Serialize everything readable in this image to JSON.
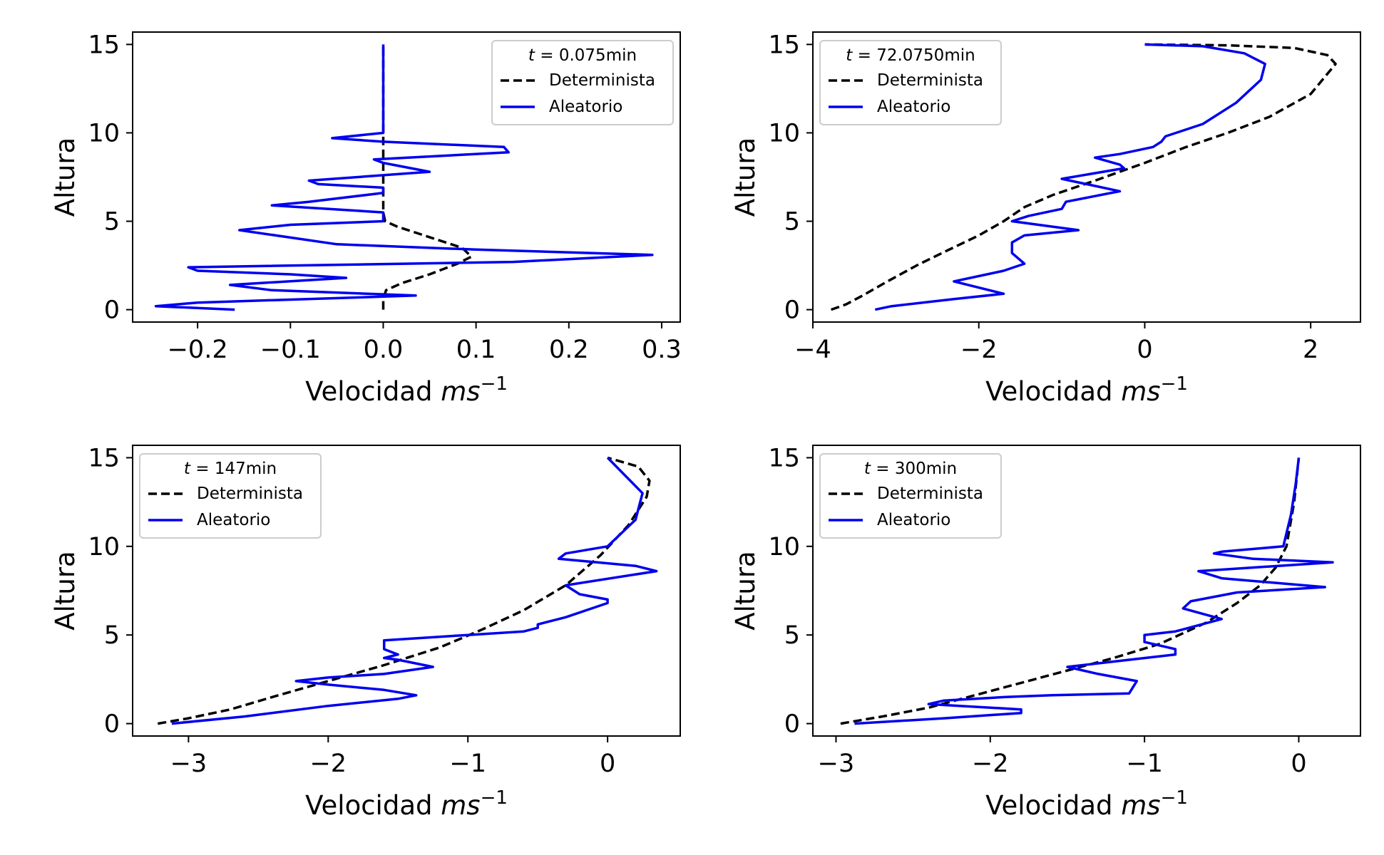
{
  "chart_data": [
    {
      "type": "line",
      "legend_title": {
        "var": "t",
        "rest": " = 0.075min"
      },
      "xlabel": {
        "text": "Velocidad ",
        "math": "ms",
        "sup": "−1"
      },
      "ylabel": "Altura",
      "xlim": [
        -0.27,
        0.32
      ],
      "ylim": [
        -0.7,
        15.7
      ],
      "xticks": [
        -0.2,
        -0.1,
        0.0,
        0.1,
        0.2,
        0.3
      ],
      "xtick_labels": [
        "−0.2",
        "−0.1",
        "0.0",
        "0.1",
        "0.2",
        "0.3"
      ],
      "yticks": [
        0,
        5,
        10,
        15
      ],
      "ytick_labels": [
        "0",
        "5",
        "10",
        "15"
      ],
      "legend_position": "upper right",
      "series": [
        {
          "name": "Determinista",
          "color": "#000000",
          "dash": true,
          "x": [
            0.0,
            0.0,
            0.003,
            0.02,
            0.05,
            0.08,
            0.095,
            0.085,
            0.05,
            0.015,
            0.002,
            0.0,
            0.0,
            0.0,
            0.0
          ],
          "y": [
            0.0,
            0.6,
            1.1,
            1.5,
            2.0,
            2.6,
            3.0,
            3.5,
            4.1,
            4.7,
            5.0,
            5.5,
            7.0,
            10.0,
            15.0
          ]
        },
        {
          "name": "Aleatorio",
          "color": "#0000ee",
          "dash": false,
          "x": [
            -0.16,
            -0.245,
            -0.2,
            0.035,
            -0.12,
            -0.165,
            -0.04,
            -0.1,
            -0.2,
            -0.21,
            0.14,
            0.29,
            0.1,
            -0.05,
            -0.155,
            -0.1,
            0.0,
            0.0,
            -0.12,
            -0.08,
            0.0,
            0.0,
            -0.07,
            -0.08,
            0.05,
            0.0,
            -0.01,
            0.135,
            0.13,
            0.0,
            -0.055,
            0.0,
            0.0,
            0.0
          ],
          "y": [
            0.0,
            0.2,
            0.4,
            0.8,
            1.1,
            1.4,
            1.8,
            2.0,
            2.2,
            2.4,
            2.7,
            3.1,
            3.4,
            3.7,
            4.5,
            4.8,
            5.0,
            5.5,
            5.9,
            6.1,
            6.6,
            6.9,
            7.1,
            7.3,
            7.8,
            8.3,
            8.5,
            8.9,
            9.2,
            9.5,
            9.7,
            10.0,
            13.0,
            15.0
          ]
        }
      ]
    },
    {
      "type": "line",
      "legend_title": {
        "var": "t",
        "rest": " = 72.0750min"
      },
      "xlabel": {
        "text": "Velocidad ",
        "math": "ms",
        "sup": "−1"
      },
      "ylabel": "Altura",
      "xlim": [
        -4.0,
        2.6
      ],
      "ylim": [
        -0.7,
        15.7
      ],
      "xticks": [
        -4,
        -2,
        0,
        2
      ],
      "xtick_labels": [
        "−4",
        "−2",
        "0",
        "2"
      ],
      "yticks": [
        0,
        5,
        10,
        15
      ],
      "ytick_labels": [
        "0",
        "5",
        "10",
        "15"
      ],
      "legend_position": "upper left",
      "series": [
        {
          "name": "Determinista",
          "color": "#000000",
          "dash": true,
          "x": [
            -3.78,
            -3.6,
            -3.4,
            -3.1,
            -2.75,
            -2.4,
            -2.0,
            -1.7,
            -1.45,
            -1.1,
            -0.6,
            0.0,
            0.5,
            1.0,
            1.5,
            2.0,
            2.3,
            2.2,
            1.8,
            1.0,
            0.0
          ],
          "y": [
            0.0,
            0.3,
            0.8,
            1.6,
            2.5,
            3.3,
            4.2,
            5.0,
            5.8,
            6.5,
            7.3,
            8.3,
            9.2,
            10.0,
            10.9,
            12.2,
            13.9,
            14.4,
            14.8,
            14.95,
            15.0
          ]
        },
        {
          "name": "Aleatorio",
          "color": "#0000ee",
          "dash": false,
          "x": [
            -3.25,
            -3.05,
            -2.3,
            -1.7,
            -2.3,
            -1.9,
            -1.7,
            -1.45,
            -1.6,
            -1.6,
            -1.45,
            -0.8,
            -1.6,
            -1.4,
            -1.0,
            -0.95,
            -0.3,
            -0.9,
            -1.0,
            -0.25,
            -0.3,
            -0.6,
            -0.3,
            0.1,
            0.2,
            0.25,
            0.7,
            1.1,
            1.4,
            1.45,
            1.2,
            0.7,
            0.0
          ],
          "y": [
            0.0,
            0.2,
            0.6,
            0.9,
            1.6,
            2.0,
            2.2,
            2.6,
            3.2,
            3.8,
            4.2,
            4.5,
            5.0,
            5.3,
            5.7,
            6.1,
            6.7,
            7.3,
            7.4,
            8.0,
            8.2,
            8.6,
            8.8,
            9.2,
            9.5,
            9.8,
            10.5,
            11.7,
            13.0,
            13.9,
            14.5,
            14.9,
            15.0
          ]
        }
      ]
    },
    {
      "type": "line",
      "legend_title": {
        "var": "t",
        "rest": " = 147min"
      },
      "xlabel": {
        "text": "Velocidad ",
        "math": "ms",
        "sup": "−1"
      },
      "ylabel": "Altura",
      "xlim": [
        -3.4,
        0.52
      ],
      "ylim": [
        -0.7,
        15.7
      ],
      "xticks": [
        -3,
        -2,
        -1,
        0
      ],
      "xtick_labels": [
        "−3",
        "−2",
        "−1",
        "0"
      ],
      "yticks": [
        0,
        5,
        10,
        15
      ],
      "ytick_labels": [
        "0",
        "5",
        "10",
        "15"
      ],
      "legend_position": "upper left",
      "series": [
        {
          "name": "Determinista",
          "color": "#000000",
          "dash": true,
          "x": [
            -3.22,
            -3.0,
            -2.7,
            -2.4,
            -2.0,
            -1.6,
            -1.2,
            -0.9,
            -0.6,
            -0.3,
            -0.05,
            0.15,
            0.28,
            0.3,
            0.22,
            0.0
          ],
          "y": [
            0.0,
            0.3,
            0.8,
            1.5,
            2.4,
            3.3,
            4.3,
            5.3,
            6.4,
            7.8,
            9.5,
            11.2,
            12.8,
            13.7,
            14.5,
            15.0
          ]
        },
        {
          "name": "Aleatorio",
          "color": "#0000ee",
          "dash": false,
          "x": [
            -3.12,
            -2.6,
            -2.0,
            -1.5,
            -1.37,
            -1.6,
            -2.0,
            -2.23,
            -2.0,
            -1.6,
            -1.25,
            -1.5,
            -1.6,
            -1.5,
            -1.6,
            -1.6,
            -1.0,
            -0.6,
            -0.5,
            -0.5,
            -0.3,
            0.0,
            0.0,
            -0.2,
            -0.3,
            0.35,
            0.2,
            -0.35,
            -0.3,
            0.0,
            0.2,
            0.25,
            0.0
          ],
          "y": [
            0.0,
            0.4,
            1.0,
            1.4,
            1.6,
            1.9,
            2.2,
            2.4,
            2.6,
            2.8,
            3.2,
            3.6,
            3.7,
            3.9,
            4.2,
            4.7,
            5.0,
            5.2,
            5.4,
            5.6,
            6.0,
            6.8,
            7.0,
            7.3,
            7.8,
            8.6,
            8.9,
            9.3,
            9.6,
            10.0,
            11.5,
            13.0,
            15.0
          ]
        }
      ]
    },
    {
      "type": "line",
      "legend_title": {
        "var": "t",
        "rest": " = 300min"
      },
      "xlabel": {
        "text": "Velocidad ",
        "math": "ms",
        "sup": "−1"
      },
      "ylabel": "Altura",
      "xlim": [
        -3.15,
        0.4
      ],
      "ylim": [
        -0.7,
        15.7
      ],
      "xticks": [
        -3,
        -2,
        -1,
        0
      ],
      "xtick_labels": [
        "−3",
        "−2",
        "−1",
        "0"
      ],
      "yticks": [
        0,
        5,
        10,
        15
      ],
      "ytick_labels": [
        "0",
        "5",
        "10",
        "15"
      ],
      "legend_position": "upper left",
      "series": [
        {
          "name": "Determinista",
          "color": "#000000",
          "dash": true,
          "x": [
            -2.97,
            -2.7,
            -2.4,
            -2.1,
            -1.8,
            -1.5,
            -1.2,
            -0.9,
            -0.6,
            -0.4,
            -0.25,
            -0.15,
            -0.08,
            -0.03,
            0.0
          ],
          "y": [
            0.0,
            0.4,
            0.9,
            1.6,
            2.3,
            3.0,
            3.7,
            4.5,
            5.7,
            6.8,
            7.8,
            8.8,
            10.0,
            12.5,
            15.0
          ]
        },
        {
          "name": "Aleatorio",
          "color": "#0000ee",
          "dash": false,
          "x": [
            -2.88,
            -2.3,
            -1.8,
            -1.8,
            -2.4,
            -2.3,
            -1.9,
            -1.6,
            -1.1,
            -1.05,
            -1.3,
            -1.5,
            -1.2,
            -0.8,
            -0.8,
            -1.0,
            -1.0,
            -0.8,
            -0.5,
            -0.75,
            -0.7,
            -0.4,
            0.17,
            -0.5,
            -0.65,
            0.22,
            -0.3,
            -0.55,
            -0.5,
            -0.1,
            -0.05,
            -0.02,
            0.0
          ],
          "y": [
            0.0,
            0.3,
            0.6,
            0.8,
            1.1,
            1.3,
            1.5,
            1.6,
            1.7,
            2.4,
            2.8,
            3.2,
            3.5,
            3.9,
            4.2,
            4.6,
            5.0,
            5.2,
            5.9,
            6.5,
            6.9,
            7.4,
            7.7,
            8.2,
            8.6,
            9.1,
            9.3,
            9.6,
            9.7,
            10.0,
            11.8,
            13.5,
            15.0
          ]
        }
      ]
    }
  ]
}
